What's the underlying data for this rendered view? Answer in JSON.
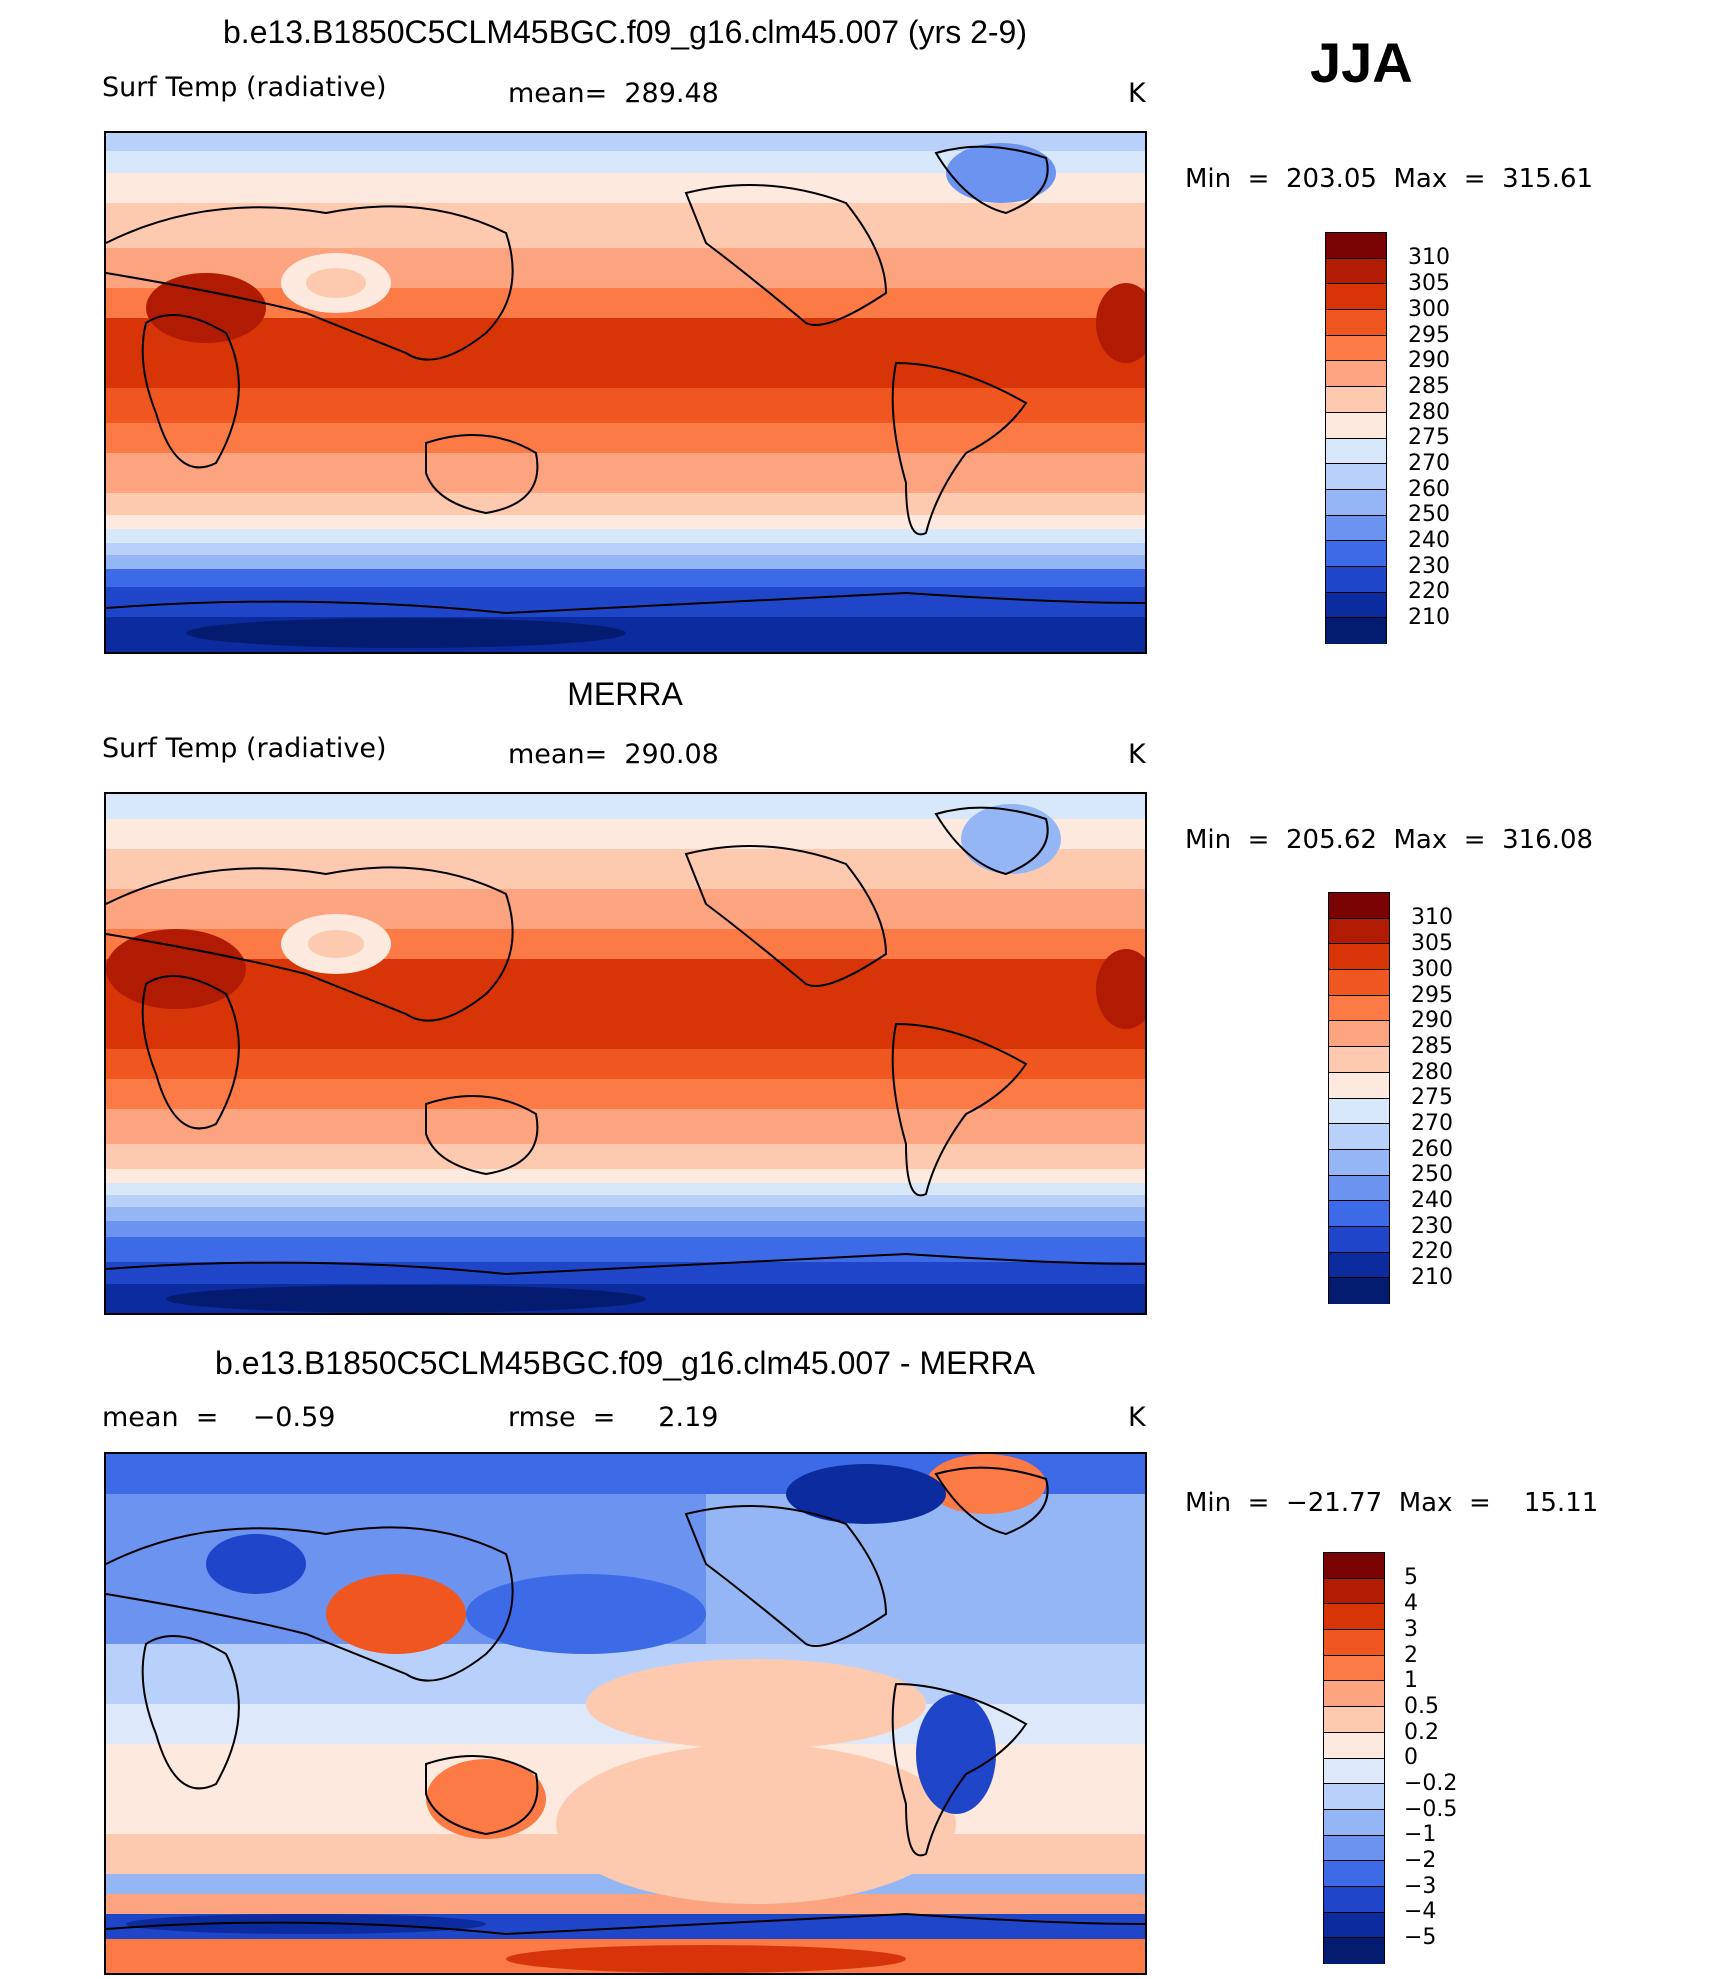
{
  "season": "JJA",
  "panels": [
    {
      "title": "b.e13.B1850C5CLM45BGC.f09_g16.clm45.007 (yrs 2-9)",
      "left_label": "Surf Temp (radiative)",
      "center_label": "mean=  289.48",
      "units": "K",
      "minmax": "Min  =  203.05  Max  =  315.61",
      "colorbar_labels": [
        "310",
        "305",
        "300",
        "295",
        "290",
        "285",
        "280",
        "275",
        "270",
        "260",
        "250",
        "240",
        "230",
        "220",
        "210"
      ]
    },
    {
      "title": "MERRA",
      "left_label": "Surf Temp (radiative)",
      "center_label": "mean=  290.08",
      "units": "K",
      "minmax": "Min  =  205.62  Max  =  316.08",
      "colorbar_labels": [
        "310",
        "305",
        "300",
        "295",
        "290",
        "285",
        "280",
        "275",
        "270",
        "260",
        "250",
        "240",
        "230",
        "220",
        "210"
      ]
    },
    {
      "title": "b.e13.B1850C5CLM45BGC.f09_g16.clm45.007 - MERRA",
      "left_label": "mean  =    −0.59",
      "center_label": "rmse  =     2.19",
      "units": "K",
      "minmax": "Min  =  −21.77  Max  =    15.11",
      "colorbar_labels": [
        "5",
        "4",
        "3",
        "2",
        "1",
        "0.5",
        "0.2",
        "0",
        "−0.2",
        "−0.5",
        "−1",
        "−2",
        "−3",
        "−4",
        "−5"
      ]
    }
  ],
  "colors": {
    "temp_scale": [
      "#7a0403",
      "#b11a03",
      "#d73508",
      "#f05620",
      "#fb7a46",
      "#fca37f",
      "#fdcab0",
      "#fde9dd",
      "#d7e8fb",
      "#b9d1fa",
      "#94b6f5",
      "#6b93ef",
      "#3d6ae6",
      "#1f46c9",
      "#0b2b9e",
      "#041c70"
    ],
    "diff_scale": [
      "#7a0403",
      "#b11a03",
      "#d73508",
      "#f05620",
      "#fb7a46",
      "#fca37f",
      "#fdcab0",
      "#fde9dd",
      "#dde9fb",
      "#b9d1fa",
      "#94b6f5",
      "#6b93ef",
      "#3d6ae6",
      "#1f46c9",
      "#0b2b9e",
      "#041c70"
    ]
  }
}
